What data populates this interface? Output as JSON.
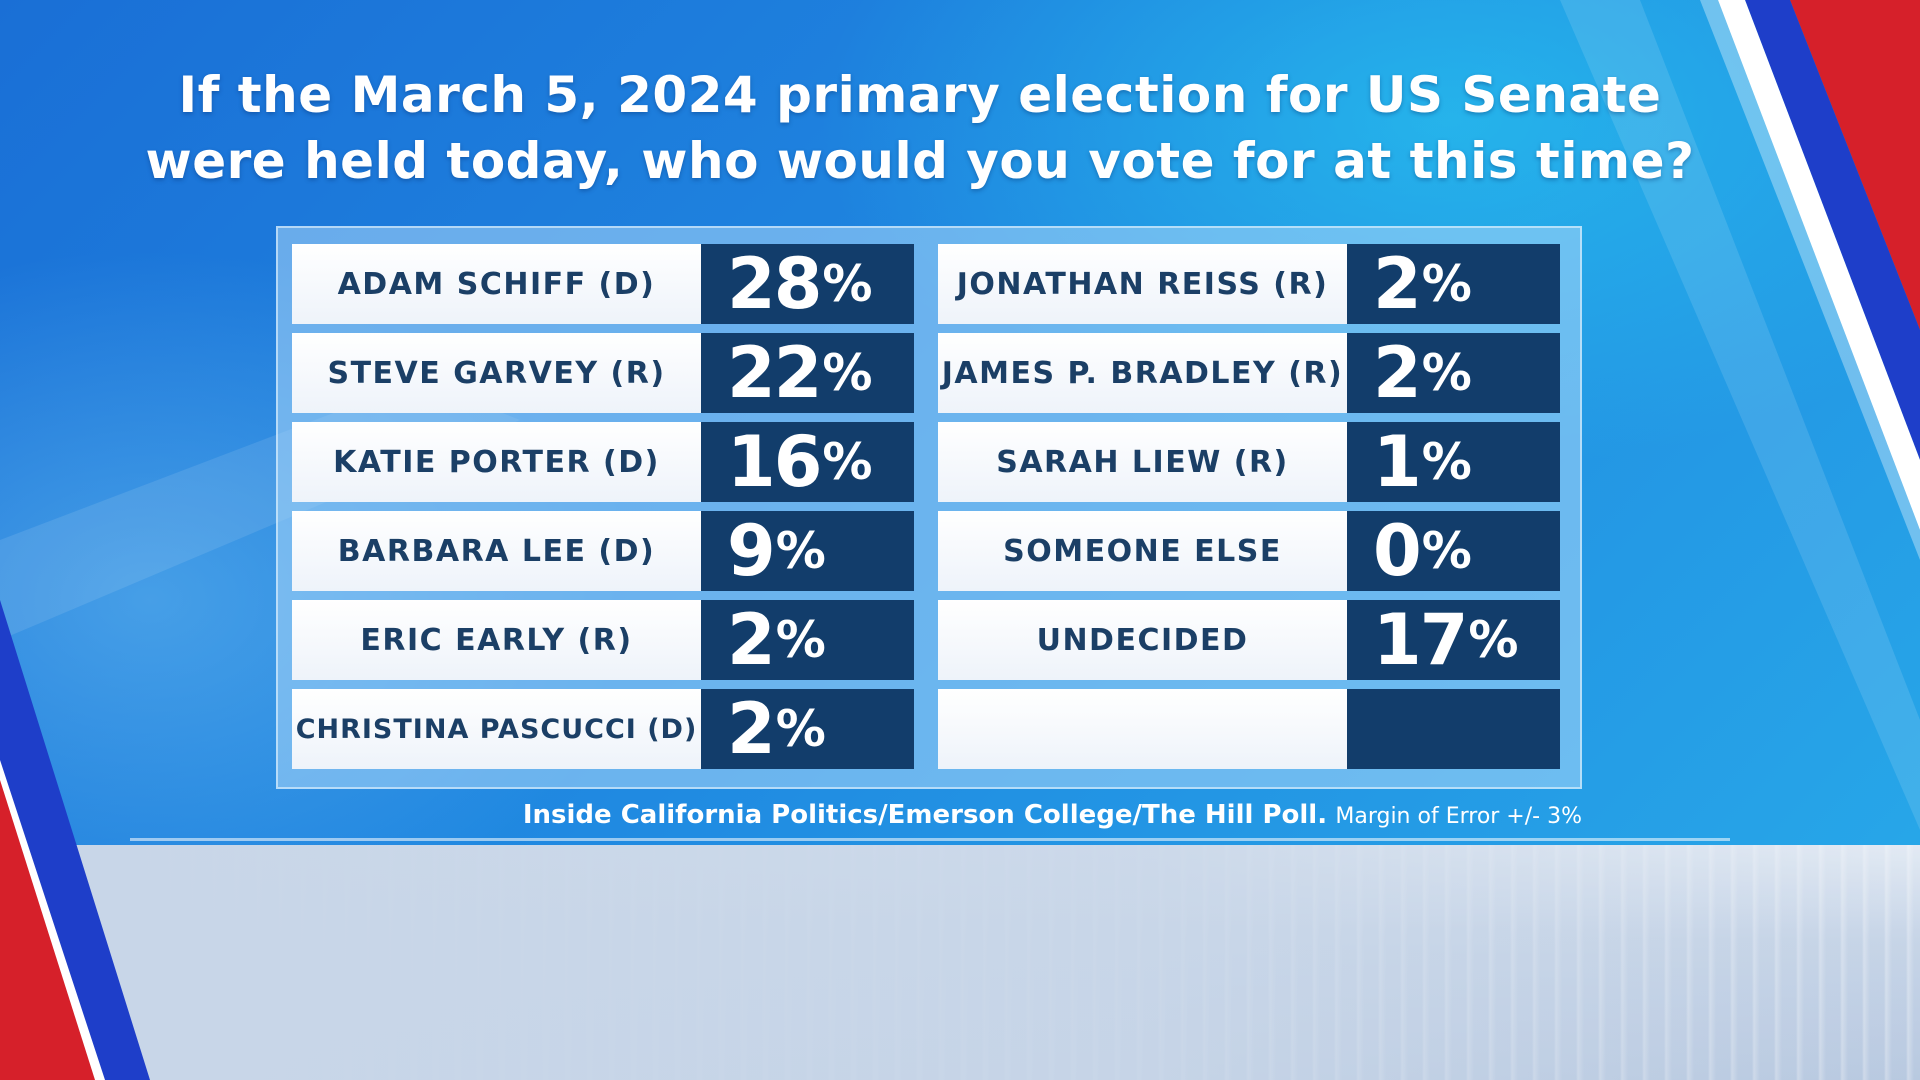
{
  "title": {
    "line1": "If the March 5, 2024 primary election for US Senate",
    "line2": "were held today, who would you vote for at this time?"
  },
  "source": {
    "poll": "Inside California Politics/Emerson College/The Hill Poll.",
    "moe": "Margin of Error +/- 3%"
  },
  "colors": {
    "label_text": "#1b3f66",
    "value_box": "#123d6b",
    "value_text": "#ffffff",
    "stripe_red": "#d6202a",
    "stripe_blue": "#1e3ec9"
  },
  "chart_data": {
    "type": "table",
    "columns": [
      [
        {
          "name": "ADAM SCHIFF (D)",
          "value": "28",
          "unit": "%"
        },
        {
          "name": "STEVE GARVEY (R)",
          "value": "22",
          "unit": "%"
        },
        {
          "name": "KATIE PORTER (D)",
          "value": "16",
          "unit": "%"
        },
        {
          "name": "BARBARA LEE (D)",
          "value": "9",
          "unit": "%"
        },
        {
          "name": "ERIC EARLY (R)",
          "value": "2",
          "unit": "%"
        },
        {
          "name": "CHRISTINA PASCUCCI (D)",
          "value": "2",
          "unit": "%"
        }
      ],
      [
        {
          "name": "JONATHAN REISS (R)",
          "value": "2",
          "unit": "%"
        },
        {
          "name": "JAMES P. BRADLEY (R)",
          "value": "2",
          "unit": "%"
        },
        {
          "name": "SARAH LIEW (R)",
          "value": "1",
          "unit": "%"
        },
        {
          "name": "SOMEONE ELSE",
          "value": "0",
          "unit": "%"
        },
        {
          "name": "UNDECIDED",
          "value": "17",
          "unit": "%"
        },
        {
          "name": "",
          "value": "",
          "unit": ""
        }
      ]
    ]
  }
}
